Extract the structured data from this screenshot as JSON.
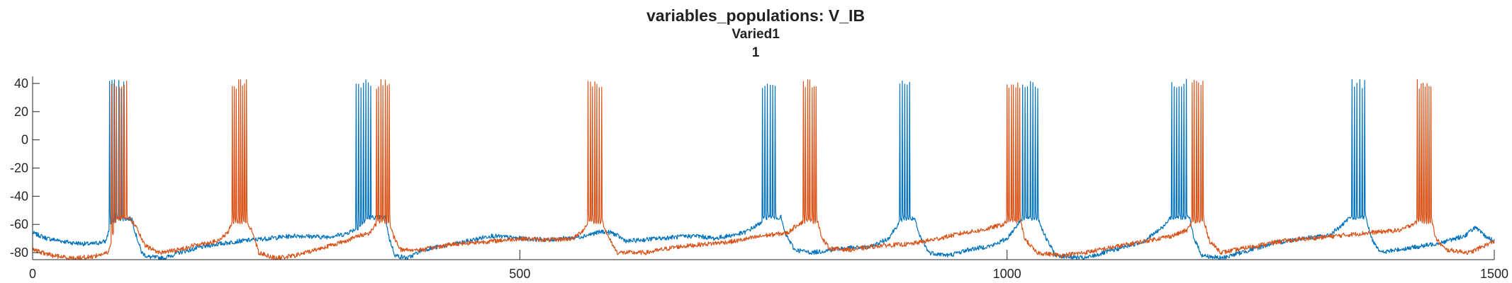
{
  "figure": {
    "title_lines": [
      "variables_populations: V_IB",
      "Varied1",
      "1"
    ]
  },
  "chart_data": {
    "type": "line",
    "title": "variables_populations: V_IB",
    "subtitle": [
      "Varied1",
      "1"
    ],
    "xlabel": "",
    "ylabel": "",
    "xlim": [
      0,
      1500
    ],
    "ylim": [
      -85,
      45
    ],
    "xticks": [
      0,
      500,
      1000,
      1500
    ],
    "xtick_labels": [
      "0",
      "500",
      "1000",
      "1500"
    ],
    "yticks": [
      40,
      20,
      0,
      -20,
      -40,
      -60,
      -80
    ],
    "ytick_labels": [
      "40",
      "20",
      "0",
      "-20",
      "-40",
      "-60",
      "-80"
    ],
    "grid": false,
    "legend": "none",
    "series": [
      {
        "color": "#0072BD",
        "baseline_points": [
          [
            0,
            -66
          ],
          [
            15,
            -70
          ],
          [
            40,
            -73
          ],
          [
            60,
            -74
          ],
          [
            75,
            -72
          ],
          [
            80,
            -60
          ],
          [
            87,
            -56
          ],
          [
            102,
            -56
          ],
          [
            105,
            -65
          ],
          [
            112,
            -80
          ],
          [
            118,
            -83
          ],
          [
            135,
            -84
          ],
          [
            150,
            -80
          ],
          [
            180,
            -75
          ],
          [
            210,
            -72
          ],
          [
            240,
            -70
          ],
          [
            270,
            -68
          ],
          [
            300,
            -69
          ],
          [
            320,
            -67
          ],
          [
            335,
            -62
          ],
          [
            345,
            -55
          ],
          [
            362,
            -55
          ],
          [
            366,
            -70
          ],
          [
            372,
            -82
          ],
          [
            385,
            -84
          ],
          [
            400,
            -78
          ],
          [
            440,
            -73
          ],
          [
            470,
            -68
          ],
          [
            500,
            -70
          ],
          [
            530,
            -71
          ],
          [
            560,
            -69
          ],
          [
            585,
            -65
          ],
          [
            595,
            -66
          ],
          [
            610,
            -72
          ],
          [
            640,
            -70
          ],
          [
            680,
            -68
          ],
          [
            700,
            -70
          ],
          [
            730,
            -66
          ],
          [
            745,
            -60
          ],
          [
            752,
            -55
          ],
          [
            768,
            -55
          ],
          [
            772,
            -66
          ],
          [
            782,
            -78
          ],
          [
            800,
            -80
          ],
          [
            830,
            -77
          ],
          [
            860,
            -76
          ],
          [
            878,
            -70
          ],
          [
            888,
            -60
          ],
          [
            893,
            -56
          ],
          [
            905,
            -56
          ],
          [
            910,
            -68
          ],
          [
            920,
            -80
          ],
          [
            940,
            -82
          ],
          [
            960,
            -78
          ],
          [
            985,
            -75
          ],
          [
            1000,
            -70
          ],
          [
            1015,
            -56
          ],
          [
            1032,
            -56
          ],
          [
            1040,
            -70
          ],
          [
            1050,
            -82
          ],
          [
            1080,
            -84
          ],
          [
            1110,
            -78
          ],
          [
            1140,
            -72
          ],
          [
            1160,
            -62
          ],
          [
            1167,
            -55
          ],
          [
            1187,
            -55
          ],
          [
            1192,
            -70
          ],
          [
            1200,
            -82
          ],
          [
            1220,
            -84
          ],
          [
            1240,
            -80
          ],
          [
            1270,
            -74
          ],
          [
            1300,
            -70
          ],
          [
            1330,
            -68
          ],
          [
            1345,
            -60
          ],
          [
            1352,
            -55
          ],
          [
            1368,
            -55
          ],
          [
            1374,
            -70
          ],
          [
            1384,
            -80
          ],
          [
            1400,
            -78
          ],
          [
            1430,
            -75
          ],
          [
            1450,
            -72
          ],
          [
            1470,
            -68
          ],
          [
            1480,
            -62
          ],
          [
            1490,
            -68
          ],
          [
            1500,
            -72
          ]
        ],
        "bursts": [
          {
            "start": 79,
            "n": 7,
            "dt": 2.4
          },
          {
            "start": 332,
            "n": 7,
            "dt": 2.5
          },
          {
            "start": 749,
            "n": 6,
            "dt": 2.6
          },
          {
            "start": 890,
            "n": 5,
            "dt": 2.5
          },
          {
            "start": 1016,
            "n": 3,
            "dt": 2.5
          },
          {
            "start": 1024,
            "n": 4,
            "dt": 2.5
          },
          {
            "start": 1169,
            "n": 7,
            "dt": 2.5
          },
          {
            "start": 1354,
            "n": 6,
            "dt": 2.6
          }
        ]
      },
      {
        "color": "#D95319",
        "baseline_points": [
          [
            0,
            -78
          ],
          [
            20,
            -82
          ],
          [
            40,
            -84
          ],
          [
            60,
            -83
          ],
          [
            78,
            -80
          ],
          [
            85,
            -58
          ],
          [
            90,
            -55
          ],
          [
            98,
            -55
          ],
          [
            105,
            -60
          ],
          [
            115,
            -75
          ],
          [
            130,
            -80
          ],
          [
            150,
            -78
          ],
          [
            170,
            -74
          ],
          [
            190,
            -72
          ],
          [
            200,
            -66
          ],
          [
            206,
            -58
          ],
          [
            220,
            -58
          ],
          [
            226,
            -66
          ],
          [
            232,
            -80
          ],
          [
            250,
            -84
          ],
          [
            270,
            -82
          ],
          [
            300,
            -76
          ],
          [
            320,
            -72
          ],
          [
            335,
            -68
          ],
          [
            346,
            -66
          ],
          [
            354,
            -58
          ],
          [
            366,
            -58
          ],
          [
            370,
            -68
          ],
          [
            378,
            -78
          ],
          [
            400,
            -78
          ],
          [
            430,
            -74
          ],
          [
            470,
            -72
          ],
          [
            500,
            -70
          ],
          [
            530,
            -71
          ],
          [
            555,
            -70
          ],
          [
            565,
            -64
          ],
          [
            571,
            -58
          ],
          [
            585,
            -58
          ],
          [
            590,
            -68
          ],
          [
            600,
            -80
          ],
          [
            630,
            -80
          ],
          [
            660,
            -76
          ],
          [
            690,
            -74
          ],
          [
            720,
            -72
          ],
          [
            750,
            -68
          ],
          [
            775,
            -66
          ],
          [
            785,
            -60
          ],
          [
            792,
            -58
          ],
          [
            806,
            -58
          ],
          [
            810,
            -70
          ],
          [
            818,
            -77
          ],
          [
            840,
            -78
          ],
          [
            870,
            -75
          ],
          [
            900,
            -74
          ],
          [
            930,
            -70
          ],
          [
            955,
            -66
          ],
          [
            975,
            -64
          ],
          [
            996,
            -60
          ],
          [
            1000,
            -58
          ],
          [
            1014,
            -58
          ],
          [
            1018,
            -70
          ],
          [
            1030,
            -80
          ],
          [
            1055,
            -82
          ],
          [
            1080,
            -80
          ],
          [
            1110,
            -76
          ],
          [
            1140,
            -72
          ],
          [
            1170,
            -68
          ],
          [
            1185,
            -64
          ],
          [
            1190,
            -58
          ],
          [
            1202,
            -58
          ],
          [
            1208,
            -72
          ],
          [
            1220,
            -80
          ],
          [
            1250,
            -76
          ],
          [
            1280,
            -72
          ],
          [
            1310,
            -70
          ],
          [
            1340,
            -68
          ],
          [
            1370,
            -66
          ],
          [
            1405,
            -64
          ],
          [
            1415,
            -60
          ],
          [
            1422,
            -58
          ],
          [
            1436,
            -58
          ],
          [
            1440,
            -70
          ],
          [
            1450,
            -78
          ],
          [
            1475,
            -80
          ],
          [
            1490,
            -75
          ],
          [
            1500,
            -72
          ]
        ],
        "bursts": [
          {
            "start": 81,
            "n": 7,
            "dt": 2.6
          },
          {
            "start": 205,
            "n": 8,
            "dt": 2.1
          },
          {
            "start": 353,
            "n": 7,
            "dt": 2.2
          },
          {
            "start": 570,
            "n": 7,
            "dt": 2.3
          },
          {
            "start": 791,
            "n": 7,
            "dt": 2.2
          },
          {
            "start": 1000,
            "n": 7,
            "dt": 2.2
          },
          {
            "start": 1190,
            "n": 6,
            "dt": 2.2
          },
          {
            "start": 1421,
            "n": 8,
            "dt": 2.0
          }
        ]
      }
    ]
  }
}
